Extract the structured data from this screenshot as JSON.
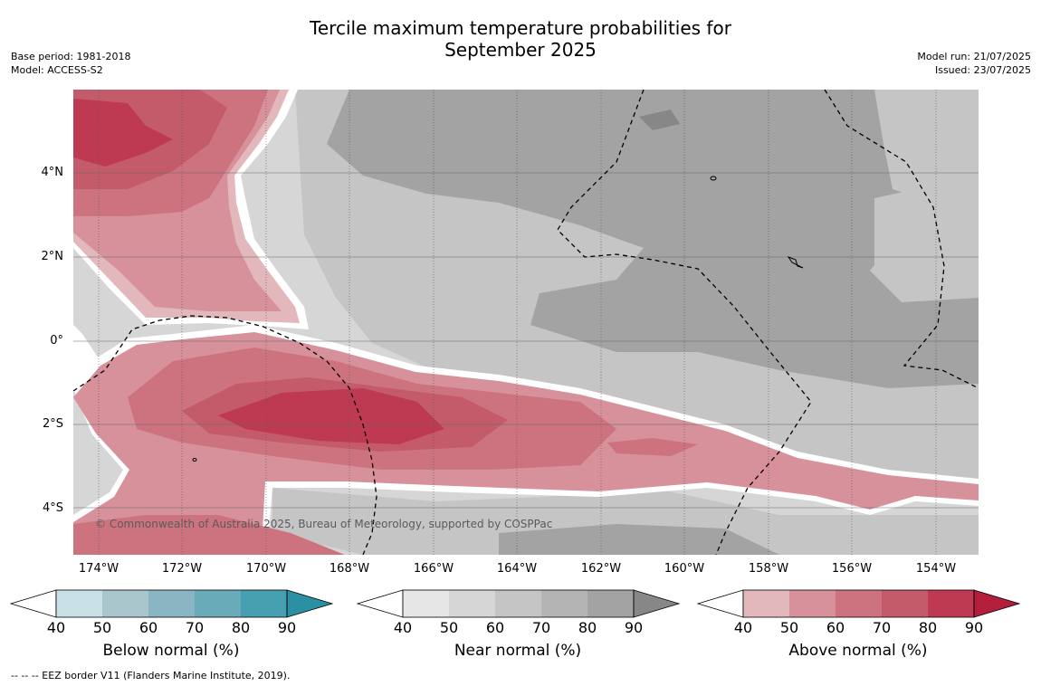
{
  "title": {
    "line1": "Tercile maximum temperature probabilities for",
    "line2": "September 2025"
  },
  "meta_left": {
    "line1": "Base period: 1981-2018",
    "line2": "Model: ACCESS-S2"
  },
  "meta_right": {
    "line1": "Model run: 21/07/2025",
    "line2": "Issued: 23/07/2025"
  },
  "map": {
    "lat_labels": [
      "4°N",
      "2°N",
      "0°",
      "2°S",
      "4°S"
    ],
    "lon_labels": [
      "174°W",
      "172°W",
      "170°W",
      "168°W",
      "166°W",
      "164°W",
      "162°W",
      "160°W",
      "158°W",
      "156°W",
      "154°W"
    ],
    "copyright": "© Commonwealth of Australia 2025, Bureau of Meteorology, supported by COSPPac"
  },
  "colorbars": [
    {
      "title": "Below normal (%)",
      "ticks": [
        "40",
        "50",
        "60",
        "70",
        "80",
        "90"
      ],
      "colors": [
        "#ffffff",
        "#c8e0e6",
        "#a8c6cb",
        "#89b6c2",
        "#6aabb9",
        "#47a0b0",
        "#2b90a3"
      ]
    },
    {
      "title": "Near normal (%)",
      "ticks": [
        "40",
        "50",
        "60",
        "70",
        "80",
        "90"
      ],
      "colors": [
        "#ffffff",
        "#e6e6e6",
        "#d6d6d6",
        "#c5c5c5",
        "#b4b4b4",
        "#a3a3a3",
        "#878787"
      ]
    },
    {
      "title": "Above normal (%)",
      "ticks": [
        "40",
        "50",
        "60",
        "70",
        "80",
        "90"
      ],
      "colors": [
        "#ffffff",
        "#e2b8bc",
        "#d6919a",
        "#cd7380",
        "#c35b6b",
        "#be3952",
        "#b31e3d"
      ]
    }
  ],
  "footer": "--  --  -- EEZ border V11 (Flanders Marine Institute, 2019)."
}
